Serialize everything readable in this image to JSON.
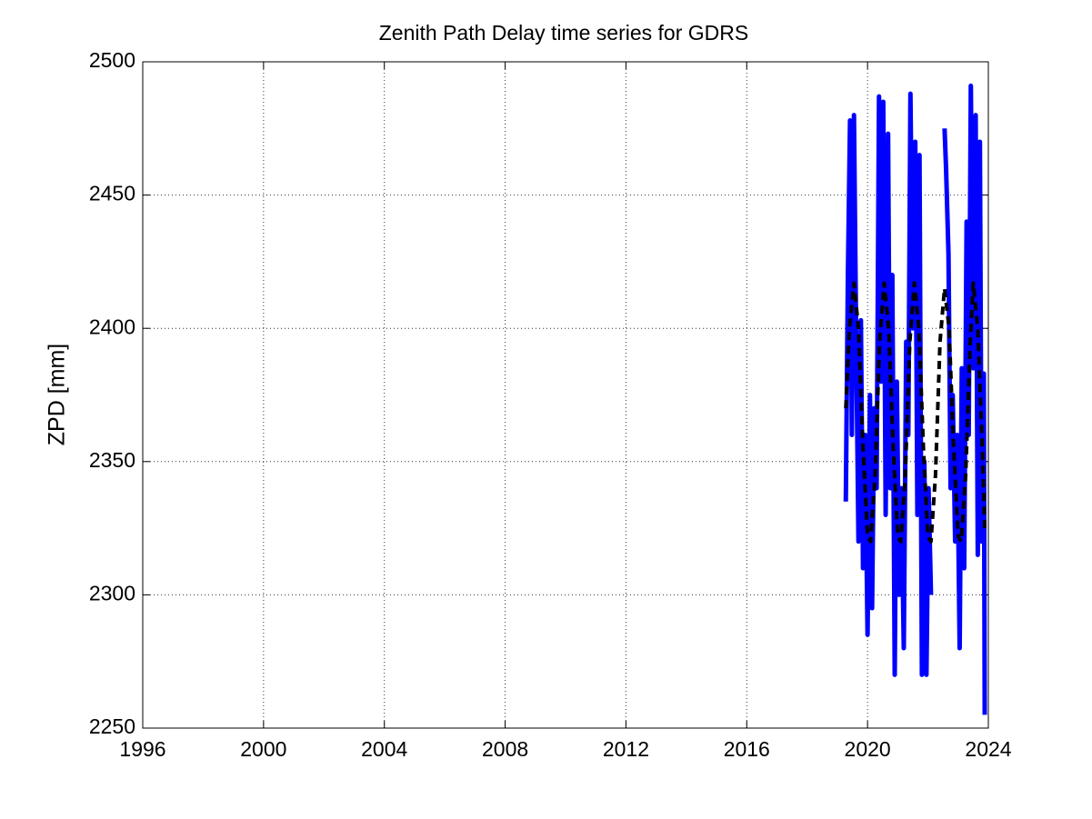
{
  "chart_data": {
    "type": "line",
    "title": "Zenith Path Delay time series for GDRS",
    "ylabel": "ZPD [mm]",
    "xlim": [
      1996,
      2024
    ],
    "xticks": [
      1996,
      2000,
      2004,
      2008,
      2012,
      2016,
      2020,
      2024
    ],
    "ylim": [
      2250,
      2500
    ],
    "yticks": [
      2250,
      2300,
      2350,
      2400,
      2450,
      2500
    ],
    "grid": true,
    "series": [
      {
        "color": "#0000ff",
        "style": "solid",
        "x": [
          2019.28,
          2019.35,
          2019.42,
          2019.48,
          2019.55,
          2019.62,
          2019.7,
          2019.78,
          2019.85,
          2019.92,
          2020.0,
          2020.08,
          2020.15,
          2020.22,
          2020.3,
          2020.38,
          2020.45,
          2020.52,
          2020.6,
          2020.68,
          2020.75,
          2020.82,
          2020.9,
          2020.97,
          2021.05,
          2021.12,
          2021.2,
          2021.28,
          2021.35,
          2021.42,
          2021.5,
          2021.58,
          2021.65,
          2021.72,
          2021.8,
          2021.88,
          2021.95,
          2022.02,
          2022.1,
          2022.3,
          2022.55,
          2022.6,
          2022.68,
          2022.75,
          2022.82,
          2022.9,
          2022.97,
          2023.05,
          2023.12,
          2023.2,
          2023.28,
          2023.35,
          2023.42,
          2023.5,
          2023.58,
          2023.65,
          2023.72,
          2023.78,
          2023.85,
          2023.88
        ],
        "values": [
          2335,
          2420,
          2478,
          2360,
          2480,
          2400,
          2320,
          2403,
          2310,
          2360,
          2285,
          2375,
          2295,
          2370,
          2340,
          2487,
          2380,
          2485,
          2330,
          2473,
          2340,
          2420,
          2270,
          2380,
          2300,
          2340,
          2280,
          2395,
          2360,
          2488,
          2400,
          2470,
          2330,
          2465,
          2270,
          2350,
          2270,
          2340,
          2300,
          null,
          2475,
          2460,
          2428,
          2340,
          2375,
          2320,
          2360,
          2280,
          2385,
          2310,
          2440,
          2360,
          2491,
          2385,
          2480,
          2315,
          2470,
          2320,
          2383,
          2255
        ]
      },
      {
        "color": "#000000",
        "style": "dashed",
        "x": [
          2019.28,
          2019.4,
          2019.55,
          2019.7,
          2019.85,
          2020.0,
          2020.1,
          2020.25,
          2020.4,
          2020.55,
          2020.7,
          2020.85,
          2021.0,
          2021.1,
          2021.25,
          2021.4,
          2021.55,
          2021.7,
          2021.85,
          2022.0,
          2022.1,
          2022.25,
          2022.4,
          2022.55,
          2022.7,
          2022.85,
          2023.0,
          2023.1,
          2023.25,
          2023.4,
          2023.5,
          2023.65,
          2023.8,
          2023.88
        ],
        "values": [
          2370,
          2400,
          2417,
          2400,
          2355,
          2322,
          2320,
          2345,
          2395,
          2417,
          2400,
          2355,
          2322,
          2320,
          2345,
          2395,
          2417,
          2400,
          2355,
          2322,
          2320,
          2345,
          2395,
          2415,
          2400,
          2355,
          2322,
          2320,
          2345,
          2395,
          2417,
          2400,
          2355,
          2325
        ]
      }
    ]
  }
}
